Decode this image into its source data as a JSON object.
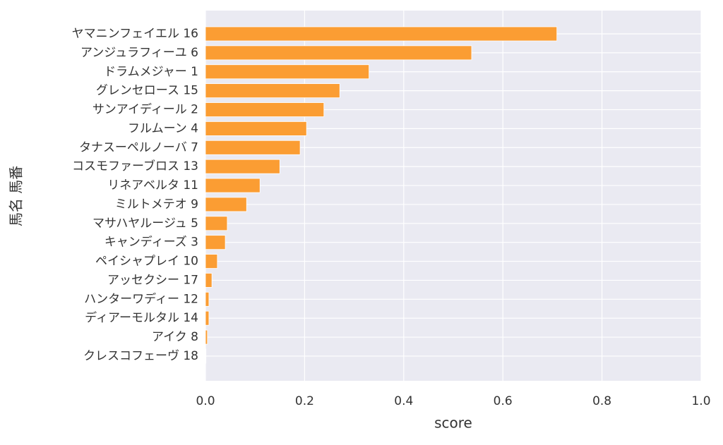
{
  "chart_data": {
    "type": "barh",
    "x_label": "score",
    "y_label": "馬名 馬番",
    "categories": [
      "ヤマニンフェイエル 16",
      "アンジュラフィーユ 6",
      "ドラムメジャー 1",
      "グレンセロース 15",
      "サンアイディール 2",
      "フルムーン 4",
      "タナスーペルノーバ 7",
      "コスモファーブロス 13",
      "リネアベルタ 11",
      "ミルトメテオ 9",
      "マサハヤルージュ 5",
      "キャンディーズ 3",
      "ペイシャプレイ 10",
      "アッセクシー 17",
      "ハンターワディー 12",
      "ディアーモルタル 14",
      "アイク 8",
      "クレスコフェーヴ 18"
    ],
    "values": [
      0.709,
      0.537,
      0.33,
      0.271,
      0.239,
      0.204,
      0.191,
      0.15,
      0.11,
      0.083,
      0.044,
      0.04,
      0.024,
      0.013,
      0.007,
      0.007,
      0.004,
      0.001
    ],
    "color": "#fb9d33",
    "xlim": [
      0,
      1
    ],
    "xticks": [
      {
        "value": 0,
        "label": "0.0"
      },
      0.2,
      0.4,
      0.6,
      0.8,
      {
        "value": 1,
        "label": "1.0"
      }
    ],
    "grid": true
  }
}
